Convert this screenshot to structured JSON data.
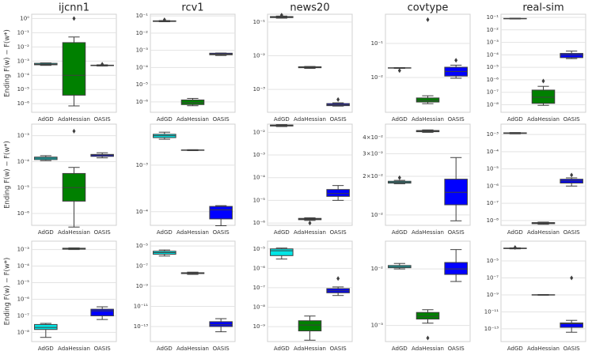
{
  "chart_data": [
    {
      "type": "box",
      "title": "ijcnn1",
      "ylabel": "Ending F(w) − F(w*)",
      "categories": [
        "AdGD",
        "AdaHessian",
        "OASIS"
      ],
      "colors": [
        "#00e5e5",
        "#008000",
        "#0000ff"
      ],
      "log_y": true,
      "grid": true,
      "ylim": [
        2.5e-07,
        2
      ],
      "yticks": [
        {
          "value": 1,
          "label": "10⁰"
        },
        {
          "value": 0.1,
          "label": "10⁻¹"
        },
        {
          "value": 0.01,
          "label": "10⁻²"
        },
        {
          "value": 0.001,
          "label": "10⁻³"
        },
        {
          "value": 0.0001,
          "label": "10⁻⁴"
        },
        {
          "value": 1e-05,
          "label": "10⁻⁵"
        },
        {
          "value": 1e-06,
          "label": "10⁻⁶"
        }
      ],
      "boxes": [
        {
          "min": 0.0005,
          "q1": 0.00055,
          "median": 0.0006,
          "q3": 0.0007,
          "max": 0.00075,
          "outliers": []
        },
        {
          "min": 7e-07,
          "q1": 4e-06,
          "median": 0.0001,
          "q3": 0.02,
          "max": 0.05,
          "outliers": [
            1
          ]
        },
        {
          "min": 0.00045,
          "q1": 0.00048,
          "median": 0.0005,
          "q3": 0.00052,
          "max": 0.00055,
          "outliers": [
            0.0006
          ]
        }
      ]
    },
    {
      "type": "box",
      "title": "rcv1",
      "categories": [
        "AdGD",
        "AdaHessian",
        "OASIS"
      ],
      "colors": [
        "#00e5e5",
        "#008000",
        "#0000ff"
      ],
      "log_y": true,
      "grid": true,
      "ylim": [
        2.5e-07,
        0.126
      ],
      "yticks": [
        {
          "value": 0.1,
          "label": "10⁻¹"
        },
        {
          "value": 0.01,
          "label": "10⁻²"
        },
        {
          "value": 0.001,
          "label": "10⁻³"
        },
        {
          "value": 0.0001,
          "label": "10⁻⁴"
        },
        {
          "value": 1e-05,
          "label": "10⁻⁵"
        },
        {
          "value": 1e-06,
          "label": "10⁻⁶"
        }
      ],
      "boxes": [
        {
          "min": 0.046,
          "q1": 0.048,
          "median": 0.05,
          "q3": 0.052,
          "max": 0.054,
          "outliers": [
            0.06
          ]
        },
        {
          "min": 6e-07,
          "q1": 7e-07,
          "median": 9e-07,
          "q3": 1.3e-06,
          "max": 1.6e-06,
          "outliers": []
        },
        {
          "min": 0.0005,
          "q1": 0.00055,
          "median": 0.0006,
          "q3": 0.00068,
          "max": 0.0007,
          "outliers": []
        }
      ]
    },
    {
      "type": "box",
      "title": "news20",
      "categories": [
        "AdGD",
        "AdaHessian",
        "OASIS"
      ],
      "colors": [
        "#00e5e5",
        "#008000",
        "#0000ff"
      ],
      "log_y": true,
      "grid": true,
      "ylim": [
        0.00021,
        0.17
      ],
      "yticks": [
        {
          "value": 0.1,
          "label": "10⁻¹"
        },
        {
          "value": 0.01,
          "label": "10⁻²"
        },
        {
          "value": 0.001,
          "label": "10⁻³"
        }
      ],
      "boxes": [
        {
          "min": 0.13,
          "q1": 0.135,
          "median": 0.14,
          "q3": 0.145,
          "max": 0.15,
          "outliers": [
            0.16
          ]
        },
        {
          "min": 0.0042,
          "q1": 0.0044,
          "median": 0.0045,
          "q3": 0.0047,
          "max": 0.0048,
          "outliers": []
        },
        {
          "min": 0.00032,
          "q1": 0.00033,
          "median": 0.00035,
          "q3": 0.00038,
          "max": 0.0004,
          "outliers": [
            0.0005
          ]
        }
      ]
    },
    {
      "type": "box",
      "title": "covtype",
      "categories": [
        "AdGD",
        "AdaHessian",
        "OASIS"
      ],
      "colors": [
        "#00e5e5",
        "#008000",
        "#0000ff"
      ],
      "log_y": true,
      "grid": true,
      "ylim": [
        0.00095,
        0.72
      ],
      "yticks": [
        {
          "value": 0.1,
          "label": "10⁻¹"
        },
        {
          "value": 0.01,
          "label": "10⁻²"
        }
      ],
      "boxes": [
        {
          "min": 0.0185,
          "q1": 0.0188,
          "median": 0.019,
          "q3": 0.0193,
          "max": 0.0195,
          "outliers": [
            0.016
          ]
        },
        {
          "min": 0.0017,
          "q1": 0.0019,
          "median": 0.0021,
          "q3": 0.0025,
          "max": 0.0029,
          "outliers": [
            0.5
          ]
        },
        {
          "min": 0.0095,
          "q1": 0.011,
          "median": 0.015,
          "q3": 0.02,
          "max": 0.023,
          "outliers": [
            0.032
          ]
        }
      ]
    },
    {
      "type": "box",
      "title": "real-sim",
      "categories": [
        "AdGD",
        "AdaHessian",
        "OASIS"
      ],
      "colors": [
        "#00e5e5",
        "#008000",
        "#0000ff"
      ],
      "log_y": true,
      "grid": true,
      "ylim": [
        2.5e-09,
        0.18
      ],
      "yticks": [
        {
          "value": 0.1,
          "label": "10⁻¹"
        },
        {
          "value": 0.01,
          "label": "10⁻²"
        },
        {
          "value": 0.001,
          "label": "10⁻³"
        },
        {
          "value": 0.0001,
          "label": "10⁻⁴"
        },
        {
          "value": 1e-05,
          "label": "10⁻⁵"
        },
        {
          "value": 1e-06,
          "label": "10⁻⁶"
        },
        {
          "value": 1e-07,
          "label": "10⁻⁷"
        },
        {
          "value": 1e-08,
          "label": "10⁻⁸"
        }
      ],
      "boxes": [
        {
          "min": 0.075,
          "q1": 0.078,
          "median": 0.08,
          "q3": 0.083,
          "max": 0.085,
          "outliers": []
        },
        {
          "min": 9e-09,
          "q1": 1.3e-08,
          "median": 4e-08,
          "q3": 1.5e-07,
          "max": 3e-07,
          "outliers": [
            8e-07
          ]
        },
        {
          "min": 5e-05,
          "q1": 6e-05,
          "median": 0.0001,
          "q3": 0.00013,
          "max": 0.0002,
          "outliers": []
        }
      ]
    },
    {
      "type": "box",
      "ylabel": "Ending F(w) − F(w*)",
      "categories": [
        "AdGD",
        "AdaHessian",
        "OASIS"
      ],
      "colors": [
        "#00e5e5",
        "#008000",
        "#0000ff"
      ],
      "log_y": true,
      "grid": true,
      "ylim": [
        3.5e-07,
        0.0028
      ],
      "yticks": [
        {
          "value": 0.001,
          "label": "10⁻³"
        },
        {
          "value": 0.0001,
          "label": "10⁻⁴"
        },
        {
          "value": 1e-05,
          "label": "10⁻⁵"
        },
        {
          "value": 1e-06,
          "label": "10⁻⁶"
        }
      ],
      "boxes": [
        {
          "min": 0.00011,
          "q1": 0.00012,
          "median": 0.000135,
          "q3": 0.00015,
          "max": 0.00017,
          "outliers": []
        },
        {
          "min": 3e-07,
          "q1": 3e-06,
          "median": 1e-05,
          "q3": 3.5e-05,
          "max": 6e-05,
          "outliers": [
            0.0015
          ]
        },
        {
          "min": 0.00014,
          "q1": 0.00016,
          "median": 0.00018,
          "q3": 0.00019,
          "max": 0.00022,
          "outliers": []
        }
      ]
    },
    {
      "type": "box",
      "categories": [
        "AdGD",
        "AdaHessian",
        "OASIS"
      ],
      "colors": [
        "#00e5e5",
        "#008000",
        "#0000ff"
      ],
      "log_y": true,
      "grid": true,
      "ylim": [
        5.1e-05,
        0.0076
      ],
      "yticks": [
        {
          "value": 0.001,
          "label": "10⁻³"
        },
        {
          "value": 0.0001,
          "label": "10⁻⁴"
        }
      ],
      "boxes": [
        {
          "min": 0.0036,
          "q1": 0.0039,
          "median": 0.0043,
          "q3": 0.0046,
          "max": 0.0051,
          "outliers": []
        },
        {
          "min": 0.00205,
          "q1": 0.00208,
          "median": 0.0021,
          "q3": 0.00212,
          "max": 0.00215,
          "outliers": []
        },
        {
          "min": 5e-05,
          "q1": 7e-05,
          "median": 0.00011,
          "q3": 0.00013,
          "max": 0.000135,
          "outliers": []
        }
      ]
    },
    {
      "type": "box",
      "categories": [
        "AdGD",
        "AdaHessian",
        "OASIS"
      ],
      "colors": [
        "#00e5e5",
        "#008000",
        "#0000ff"
      ],
      "log_y": true,
      "grid": true,
      "ylim": [
        7.9e-07,
        0.023
      ],
      "yticks": [
        {
          "value": 0.01,
          "label": "10⁻²"
        },
        {
          "value": 0.001,
          "label": "10⁻³"
        },
        {
          "value": 0.0001,
          "label": "10⁻⁴"
        },
        {
          "value": 1e-05,
          "label": "10⁻⁵"
        },
        {
          "value": 1e-06,
          "label": "10⁻⁶"
        }
      ],
      "boxes": [
        {
          "min": 0.018,
          "q1": 0.019,
          "median": 0.02,
          "q3": 0.021,
          "max": 0.022,
          "outliers": []
        },
        {
          "min": 1.3e-06,
          "q1": 1.4e-06,
          "median": 1.5e-06,
          "q3": 1.6e-06,
          "max": 1.7e-06,
          "outliers": [
            1e-06
          ]
        },
        {
          "min": 1e-05,
          "q1": 1.5e-05,
          "median": 2e-05,
          "q3": 3e-05,
          "max": 4.5e-05,
          "outliers": []
        }
      ]
    },
    {
      "type": "box",
      "categories": [
        "AdGD",
        "AdaHessian",
        "OASIS"
      ],
      "colors": [
        "#00e5e5",
        "#008000",
        "#0000ff"
      ],
      "log_y": true,
      "grid": true,
      "ylim": [
        0.0083,
        0.051
      ],
      "yticks": [
        {
          "value": 0.04,
          "label": "4×10⁻²"
        },
        {
          "value": 0.03,
          "label": "3×10⁻²"
        },
        {
          "value": 0.02,
          "label": "2×10⁻²"
        },
        {
          "value": 0.01,
          "label": "10⁻²"
        }
      ],
      "boxes": [
        {
          "min": 0.0175,
          "q1": 0.0177,
          "median": 0.018,
          "q3": 0.0183,
          "max": 0.0186,
          "outliers": [
            0.0195
          ]
        },
        {
          "min": 0.044,
          "q1": 0.0445,
          "median": 0.045,
          "q3": 0.0455,
          "max": 0.046,
          "outliers": []
        },
        {
          "min": 0.009,
          "q1": 0.012,
          "median": 0.015,
          "q3": 0.019,
          "max": 0.028,
          "outliers": []
        }
      ]
    },
    {
      "type": "box",
      "categories": [
        "AdGD",
        "AdaHessian",
        "OASIS"
      ],
      "colors": [
        "#00e5e5",
        "#008000",
        "#0000ff"
      ],
      "log_y": true,
      "grid": true,
      "ylim": [
        5.2e-09,
        0.004
      ],
      "yticks": [
        {
          "value": 0.001,
          "label": "10⁻³"
        },
        {
          "value": 0.0001,
          "label": "10⁻⁴"
        },
        {
          "value": 1e-05,
          "label": "10⁻⁵"
        },
        {
          "value": 1e-06,
          "label": "10⁻⁶"
        },
        {
          "value": 1e-07,
          "label": "10⁻⁷"
        },
        {
          "value": 1e-08,
          "label": "10⁻⁸"
        }
      ],
      "boxes": [
        {
          "min": 0.0011,
          "q1": 0.00115,
          "median": 0.0012,
          "q3": 0.00125,
          "max": 0.0013,
          "outliers": []
        },
        {
          "min": 6e-09,
          "q1": 6.5e-09,
          "median": 7e-09,
          "q3": 7.5e-09,
          "max": 8e-09,
          "outliers": []
        },
        {
          "min": 1e-06,
          "q1": 1.5e-06,
          "median": 2e-06,
          "q3": 2.5e-06,
          "max": 3e-06,
          "outliers": [
            4.4e-06
          ]
        }
      ]
    },
    {
      "type": "box",
      "ylabel": "Ending F(w) − F(w*)",
      "categories": [
        "AdGD",
        "AdaHessian",
        "OASIS"
      ],
      "colors": [
        "#00e5e5",
        "#008000",
        "#0000ff"
      ],
      "log_y": true,
      "grid": true,
      "ylim": [
        2.8e-09,
        0.0032
      ],
      "yticks": [
        {
          "value": 0.001,
          "label": "10⁻³"
        },
        {
          "value": 0.0001,
          "label": "10⁻⁴"
        },
        {
          "value": 1e-05,
          "label": "10⁻⁵"
        },
        {
          "value": 1e-06,
          "label": "10⁻⁶"
        },
        {
          "value": 1e-07,
          "label": "10⁻⁷"
        },
        {
          "value": 1e-08,
          "label": "10⁻⁸"
        }
      ],
      "boxes": [
        {
          "min": 5e-09,
          "q1": 1.5e-08,
          "median": 2e-08,
          "q3": 3e-08,
          "max": 3.5e-08,
          "outliers": []
        },
        {
          "min": 0.001,
          "q1": 0.00105,
          "median": 0.0011,
          "q3": 0.0012,
          "max": 0.00125,
          "outliers": []
        },
        {
          "min": 6e-08,
          "q1": 1e-07,
          "median": 2e-07,
          "q3": 2.5e-07,
          "max": 3.5e-07,
          "outliers": []
        }
      ]
    },
    {
      "type": "box",
      "categories": [
        "AdGD",
        "AdaHessian",
        "OASIS"
      ],
      "colors": [
        "#00e5e5",
        "#008000",
        "#0000ff"
      ],
      "log_y": true,
      "grid": true,
      "ylim": [
        3.2e-15,
        3e-05
      ],
      "yticks": [
        {
          "value": 1e-05,
          "label": "10⁻⁵"
        },
        {
          "value": 1e-07,
          "label": "10⁻⁷"
        },
        {
          "value": 1e-09,
          "label": "10⁻⁹"
        },
        {
          "value": 1e-11,
          "label": "10⁻¹¹"
        },
        {
          "value": 1e-13,
          "label": "10⁻¹³"
        }
      ],
      "boxes": [
        {
          "min": 1e-06,
          "q1": 1.5e-06,
          "median": 2.2e-06,
          "q3": 3e-06,
          "max": 4e-06,
          "outliers": []
        },
        {
          "min": 1.5e-08,
          "q1": 1.8e-08,
          "median": 2e-08,
          "q3": 2.2e-08,
          "max": 2.5e-08,
          "outliers": []
        },
        {
          "min": 3e-14,
          "q1": 1e-13,
          "median": 1.5e-13,
          "q3": 3e-13,
          "max": 6e-13,
          "outliers": []
        }
      ]
    },
    {
      "type": "box",
      "categories": [
        "AdGD",
        "AdaHessian",
        "OASIS"
      ],
      "colors": [
        "#00e5e5",
        "#008000",
        "#0000ff"
      ],
      "log_y": true,
      "grid": true,
      "ylim": [
        1.7e-10,
        2.5e-05
      ],
      "yticks": [
        {
          "value": 1e-05,
          "label": "10⁻⁵"
        },
        {
          "value": 1e-06,
          "label": "10⁻⁶"
        },
        {
          "value": 1e-07,
          "label": "10⁻⁷"
        },
        {
          "value": 1e-08,
          "label": "10⁻⁸"
        },
        {
          "value": 1e-09,
          "label": "10⁻⁹"
        }
      ],
      "boxes": [
        {
          "min": 3e-06,
          "q1": 4.5e-06,
          "median": 8e-06,
          "q3": 1e-05,
          "max": 1.1e-05,
          "outliers": []
        },
        {
          "min": 2e-10,
          "q1": 6e-10,
          "median": 1.2e-09,
          "q3": 2e-09,
          "max": 3.5e-09,
          "outliers": []
        },
        {
          "min": 4e-08,
          "q1": 5.5e-08,
          "median": 7e-08,
          "q3": 9e-08,
          "max": 1.1e-07,
          "outliers": [
            3e-07
          ]
        }
      ]
    },
    {
      "type": "box",
      "categories": [
        "AdGD",
        "AdaHessian",
        "OASIS"
      ],
      "colors": [
        "#00e5e5",
        "#008000",
        "#0000ff"
      ],
      "log_y": true,
      "grid": true,
      "ylim": [
        0.00052,
        0.031
      ],
      "yticks": [
        {
          "value": 0.01,
          "label": "10⁻²"
        },
        {
          "value": 0.001,
          "label": "10⁻³"
        }
      ],
      "boxes": [
        {
          "min": 0.01,
          "q1": 0.0105,
          "median": 0.011,
          "q3": 0.0115,
          "max": 0.0125,
          "outliers": []
        },
        {
          "min": 0.0011,
          "q1": 0.0013,
          "median": 0.00145,
          "q3": 0.0017,
          "max": 0.0019,
          "outliers": [
            0.0006
          ]
        },
        {
          "min": 0.006,
          "q1": 0.008,
          "median": 0.01,
          "q3": 0.013,
          "max": 0.022,
          "outliers": []
        }
      ]
    },
    {
      "type": "box",
      "categories": [
        "AdGD",
        "AdaHessian",
        "OASIS"
      ],
      "colors": [
        "#00e5e5",
        "#008000",
        "#0000ff"
      ],
      "log_y": true,
      "grid": true,
      "ylim": [
        3.2e-15,
        0.0021
      ],
      "yticks": [
        {
          "value": 1e-05,
          "label": "10⁻⁵"
        },
        {
          "value": 1e-07,
          "label": "10⁻⁷"
        },
        {
          "value": 1e-09,
          "label": "10⁻⁹"
        },
        {
          "value": 1e-11,
          "label": "10⁻¹¹"
        },
        {
          "value": 1e-13,
          "label": "10⁻¹³"
        }
      ],
      "boxes": [
        {
          "min": 0.00026,
          "q1": 0.00028,
          "median": 0.0003,
          "q3": 0.00032,
          "max": 0.00034,
          "outliers": [
            0.00038
          ]
        },
        {
          "min": 9e-10,
          "q1": 9.5e-10,
          "median": 1e-09,
          "q3": 1.05e-09,
          "max": 1.1e-09,
          "outliers": []
        },
        {
          "min": 4e-14,
          "q1": 1.5e-13,
          "median": 4e-13,
          "q3": 5e-13,
          "max": 1e-12,
          "outliers": [
            1e-07
          ]
        }
      ]
    }
  ]
}
